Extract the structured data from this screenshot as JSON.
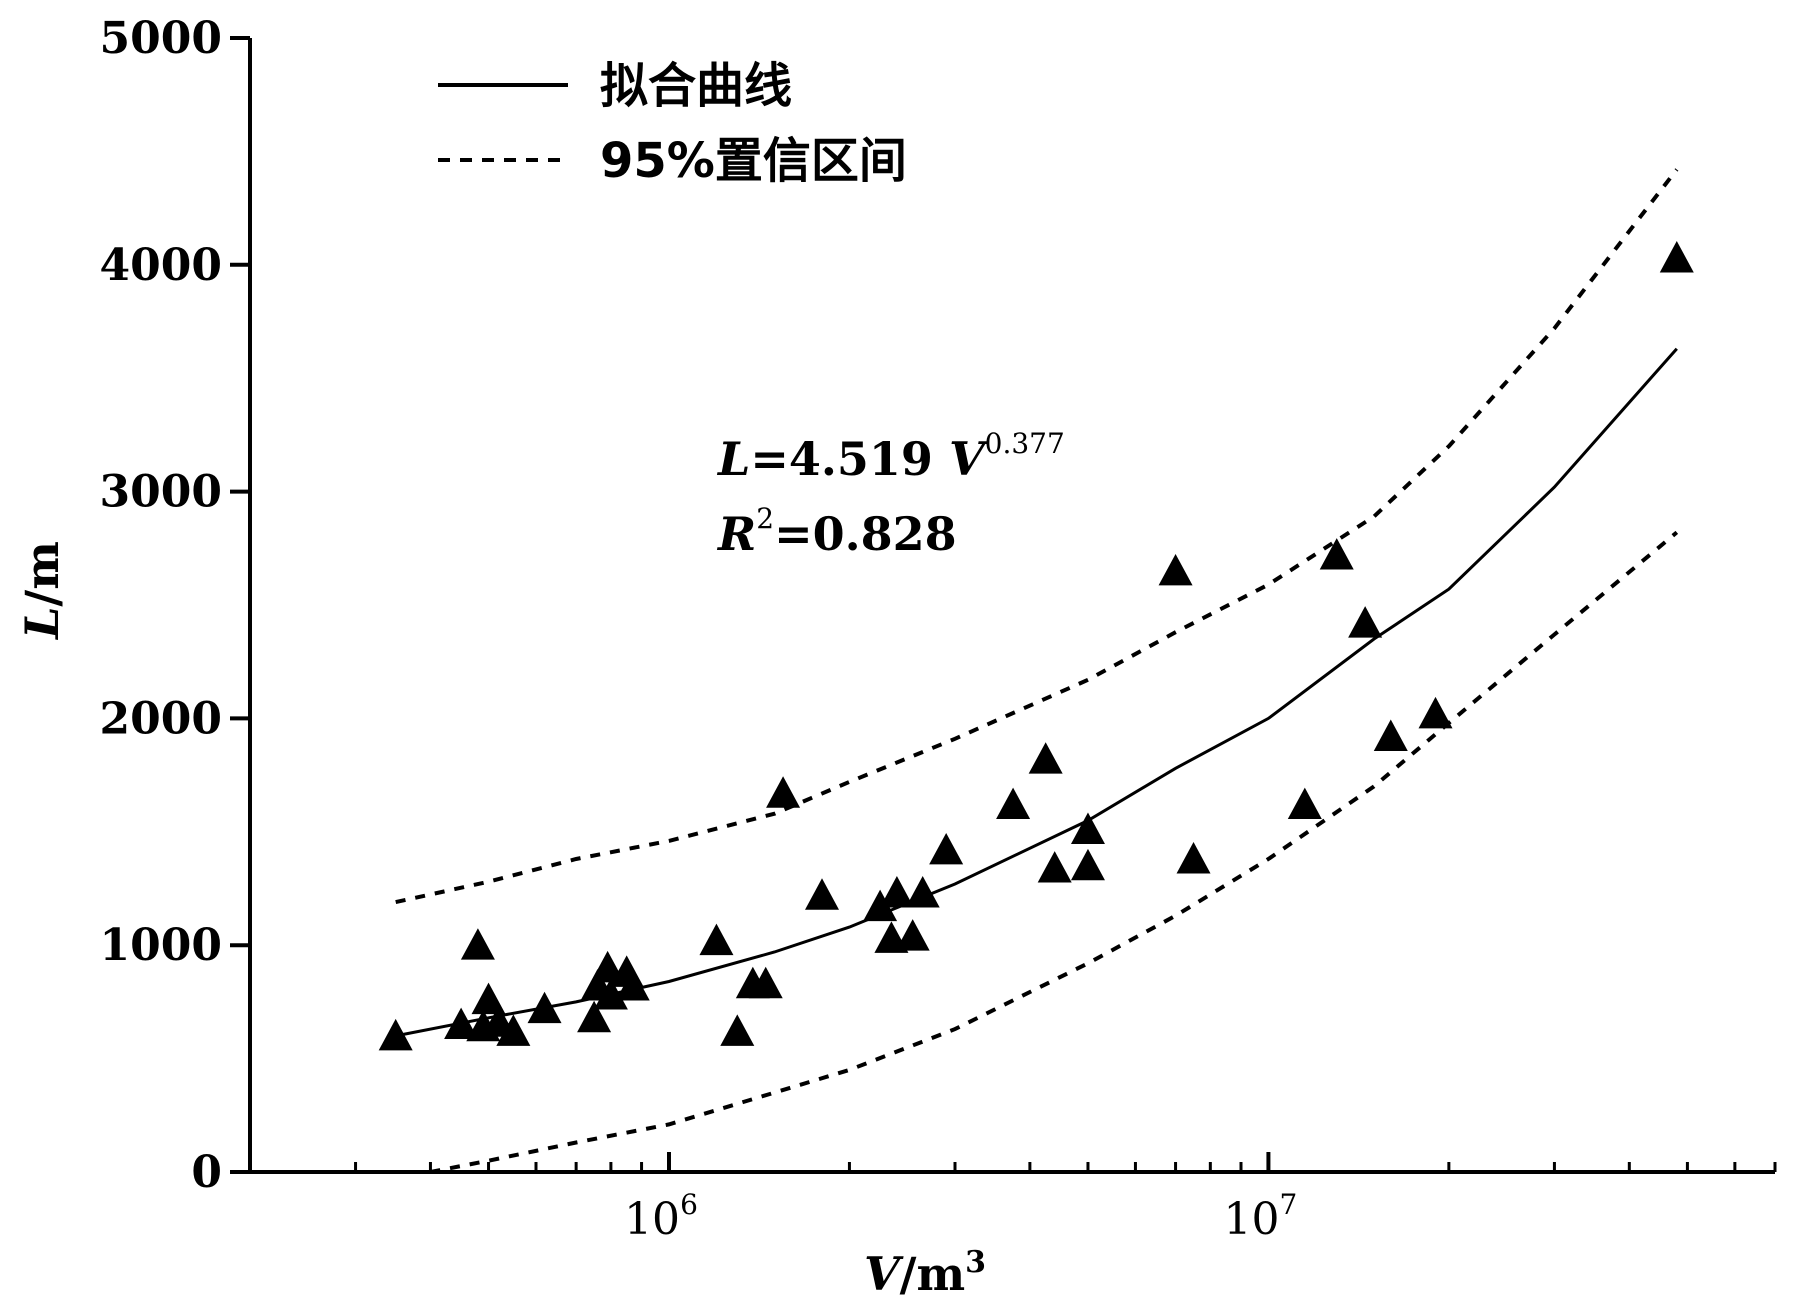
{
  "chart_data": {
    "type": "scatter",
    "x_scale": "log",
    "xlabel": {
      "var": "V",
      "unit": "m",
      "unit_power": "3"
    },
    "ylabel": {
      "var": "L",
      "unit": "m"
    },
    "xlim": [
      200000,
      70000000
    ],
    "ylim": [
      0,
      5000
    ],
    "y_ticks": [
      0,
      1000,
      2000,
      3000,
      4000,
      5000
    ],
    "x_major_ticks": [
      {
        "value": 1000000,
        "base": "10",
        "exp": "6"
      },
      {
        "value": 10000000,
        "base": "10",
        "exp": "7"
      }
    ],
    "grid": false,
    "legend": {
      "position": "top-left",
      "entries": [
        {
          "label": "拟合曲线",
          "style": "solid"
        },
        {
          "label": "95%置信区间",
          "style": "dashed"
        }
      ]
    },
    "annotation": {
      "line1": {
        "lhs": "L",
        "eq": "=4.519 ",
        "var": "V",
        "exp": "0.377"
      },
      "line2": {
        "lhs": "R",
        "exp": "2",
        "eq": "=0.828"
      }
    },
    "fit_curve": {
      "x": [
        350000,
        500000,
        700000,
        1000000,
        1500000,
        2000000,
        3000000,
        5000000,
        7000000,
        10000000,
        15000000,
        20000000,
        30000000,
        48000000
      ],
      "y": [
        600,
        680,
        750,
        840,
        970,
        1080,
        1270,
        1550,
        1780,
        2000,
        2350,
        2570,
        3020,
        3630
      ]
    },
    "ci_upper": {
      "x": [
        350000,
        500000,
        700000,
        1000000,
        1500000,
        2000000,
        3000000,
        5000000,
        7000000,
        10000000,
        15000000,
        20000000,
        30000000,
        48000000
      ],
      "y": [
        1190,
        1280,
        1380,
        1460,
        1580,
        1720,
        1910,
        2170,
        2380,
        2590,
        2890,
        3200,
        3720,
        4420
      ]
    },
    "ci_lower": {
      "x": [
        400000,
        500000,
        700000,
        1000000,
        1500000,
        2000000,
        3000000,
        5000000,
        7000000,
        10000000,
        15000000,
        20000000,
        30000000,
        48000000
      ],
      "y": [
        0,
        50,
        130,
        210,
        350,
        450,
        630,
        920,
        1130,
        1380,
        1700,
        1980,
        2370,
        2820
      ]
    },
    "points": [
      {
        "x": 350000,
        "y": 600
      },
      {
        "x": 450000,
        "y": 650
      },
      {
        "x": 480000,
        "y": 1000
      },
      {
        "x": 490000,
        "y": 640
      },
      {
        "x": 500000,
        "y": 760
      },
      {
        "x": 520000,
        "y": 660
      },
      {
        "x": 550000,
        "y": 620
      },
      {
        "x": 620000,
        "y": 720
      },
      {
        "x": 750000,
        "y": 680
      },
      {
        "x": 760000,
        "y": 820
      },
      {
        "x": 790000,
        "y": 900
      },
      {
        "x": 800000,
        "y": 780
      },
      {
        "x": 850000,
        "y": 880
      },
      {
        "x": 870000,
        "y": 820
      },
      {
        "x": 1200000,
        "y": 1020
      },
      {
        "x": 1300000,
        "y": 620
      },
      {
        "x": 1380000,
        "y": 830
      },
      {
        "x": 1450000,
        "y": 830
      },
      {
        "x": 1550000,
        "y": 1670
      },
      {
        "x": 1800000,
        "y": 1220
      },
      {
        "x": 2250000,
        "y": 1170
      },
      {
        "x": 2350000,
        "y": 1030
      },
      {
        "x": 2400000,
        "y": 1230
      },
      {
        "x": 2550000,
        "y": 1040
      },
      {
        "x": 2650000,
        "y": 1230
      },
      {
        "x": 2900000,
        "y": 1420
      },
      {
        "x": 3750000,
        "y": 1620
      },
      {
        "x": 4250000,
        "y": 1820
      },
      {
        "x": 4400000,
        "y": 1340
      },
      {
        "x": 5000000,
        "y": 1350
      },
      {
        "x": 5000000,
        "y": 1510
      },
      {
        "x": 7000000,
        "y": 2650
      },
      {
        "x": 7500000,
        "y": 1380
      },
      {
        "x": 11500000,
        "y": 1620
      },
      {
        "x": 13000000,
        "y": 2720
      },
      {
        "x": 14500000,
        "y": 2420
      },
      {
        "x": 16000000,
        "y": 1920
      },
      {
        "x": 19000000,
        "y": 2020
      },
      {
        "x": 48000000,
        "y": 4030
      }
    ]
  }
}
